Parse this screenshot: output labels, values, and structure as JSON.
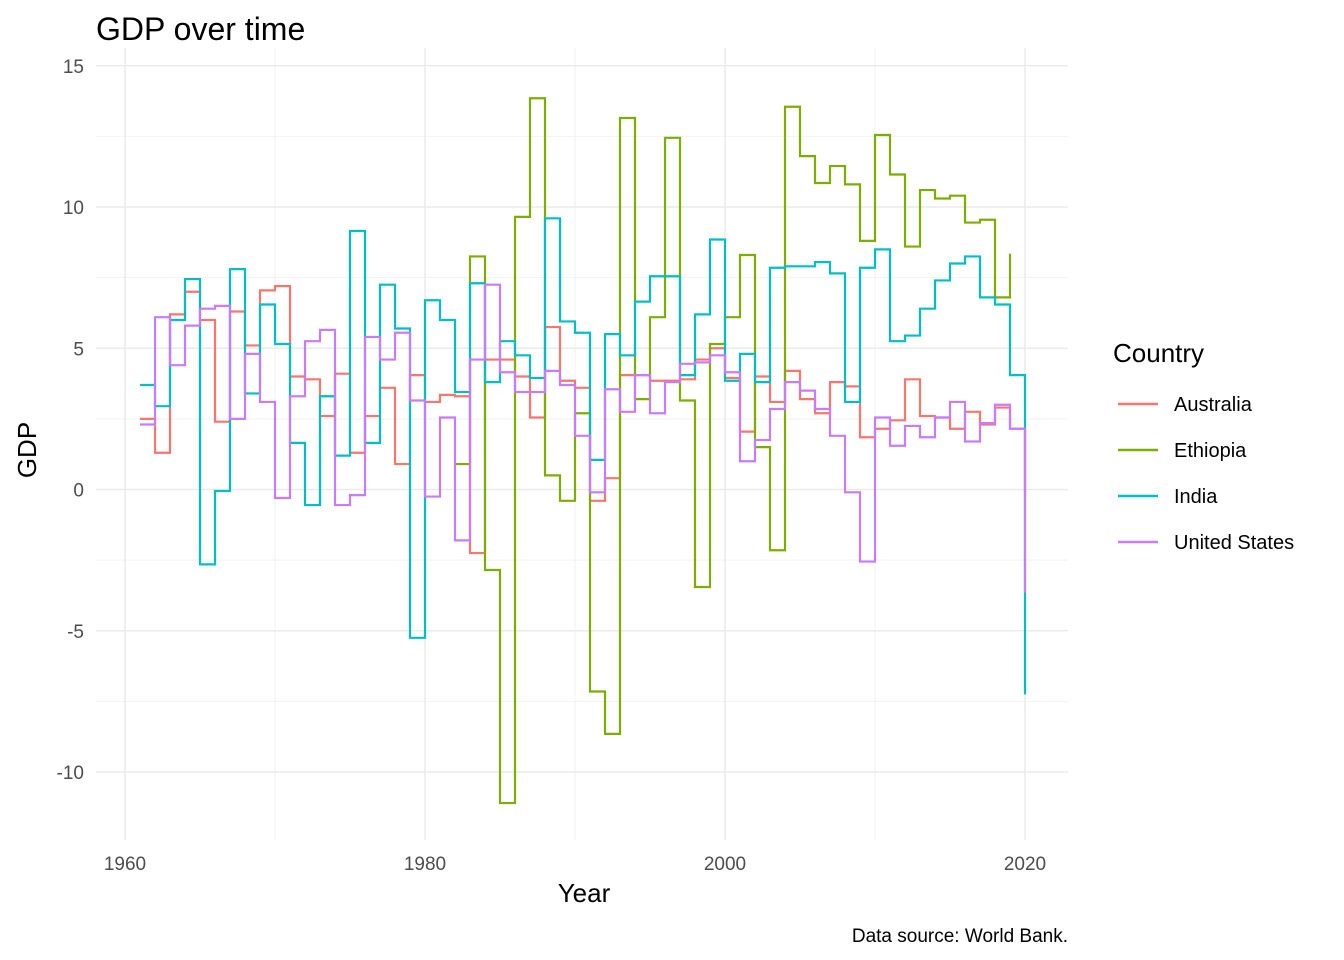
{
  "chart_data": {
    "type": "line",
    "step": true,
    "title": "GDP over time",
    "xlabel": "Year",
    "ylabel": "GDP",
    "caption": "Data source: World Bank.",
    "xlim": [
      1958.2,
      1822.0
    ],
    "ylim": [
      -12.3,
      15.1
    ],
    "x_ticks": [
      1960,
      1980,
      2000,
      2020
    ],
    "y_ticks": [
      15,
      10,
      5,
      0,
      -5,
      -10
    ],
    "y_tick_labels": [
      "15",
      "10",
      "5",
      "0",
      "-5",
      "-10"
    ],
    "grid": true,
    "legend": {
      "title": "Country",
      "position": "right"
    },
    "series": [
      {
        "name": "Australia",
        "color": "#F8766D",
        "start_year": 1961,
        "values": [
          2.5,
          1.3,
          6.2,
          7.0,
          6.0,
          2.4,
          6.3,
          5.1,
          7.05,
          7.2,
          4.0,
          3.9,
          2.6,
          4.1,
          1.3,
          2.6,
          3.6,
          0.9,
          4.05,
          3.1,
          3.35,
          3.3,
          -2.25,
          4.6,
          4.6,
          4.0,
          2.55,
          5.75,
          3.85,
          3.6,
          -0.4,
          0.4,
          4.05,
          4.05,
          3.85,
          3.85,
          3.9,
          4.6,
          5.0,
          3.95,
          2.05,
          4.0,
          3.1,
          4.2,
          3.2,
          2.7,
          3.8,
          3.65,
          1.85,
          2.15,
          2.45,
          3.9,
          2.6,
          2.55,
          2.15,
          2.75,
          2.3,
          2.9,
          2.15,
          -0.2
        ]
      },
      {
        "name": "Ethiopia",
        "color": "#7CAE00",
        "start_year": 1982,
        "values": [
          0.9,
          8.25,
          -2.85,
          -11.1,
          9.65,
          13.85,
          0.5,
          -0.4,
          2.7,
          -7.15,
          -8.65,
          13.15,
          3.2,
          6.1,
          12.45,
          3.15,
          -3.45,
          5.15,
          6.1,
          8.3,
          1.5,
          -2.15,
          13.55,
          11.8,
          10.85,
          11.45,
          10.8,
          8.8,
          12.55,
          11.15,
          8.6,
          10.6,
          10.3,
          10.4,
          9.45,
          9.55,
          6.8,
          8.35
        ]
      },
      {
        "name": "India",
        "color": "#00BFC4",
        "start_year": 1961,
        "values": [
          3.7,
          2.95,
          6.0,
          7.45,
          -2.65,
          -0.05,
          7.8,
          3.4,
          6.55,
          5.15,
          1.65,
          -0.55,
          3.3,
          1.2,
          9.15,
          1.65,
          7.25,
          5.7,
          -5.25,
          6.7,
          6.0,
          3.45,
          7.3,
          3.8,
          5.25,
          4.75,
          3.95,
          9.6,
          5.95,
          5.55,
          1.05,
          5.5,
          4.75,
          6.65,
          7.55,
          7.55,
          4.05,
          6.2,
          8.85,
          3.85,
          4.8,
          3.8,
          7.85,
          7.9,
          7.9,
          8.05,
          7.65,
          3.1,
          7.85,
          8.5,
          5.25,
          5.45,
          6.4,
          7.4,
          8.0,
          8.25,
          6.8,
          6.55,
          4.05,
          -7.25
        ]
      },
      {
        "name": "United States",
        "color": "#C77CFF",
        "start_year": 1961,
        "values": [
          2.3,
          6.1,
          4.4,
          5.8,
          6.4,
          6.5,
          2.5,
          4.8,
          3.1,
          -0.3,
          3.3,
          5.25,
          5.65,
          -0.55,
          -0.2,
          5.4,
          4.6,
          5.55,
          3.15,
          -0.25,
          2.55,
          -1.8,
          4.6,
          7.25,
          4.15,
          3.45,
          3.45,
          4.2,
          3.7,
          1.9,
          -0.1,
          3.55,
          2.75,
          4.05,
          2.7,
          3.8,
          4.45,
          4.5,
          4.75,
          4.15,
          1.0,
          1.75,
          2.85,
          3.8,
          3.5,
          2.85,
          1.9,
          -0.1,
          -2.55,
          2.55,
          1.55,
          2.25,
          1.85,
          2.55,
          3.1,
          1.7,
          2.35,
          3.0,
          2.15,
          -3.65
        ]
      }
    ]
  }
}
